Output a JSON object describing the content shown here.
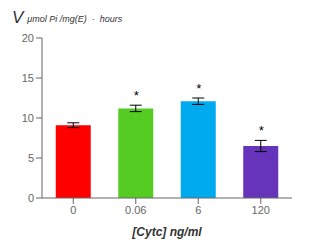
{
  "chart_data": {
    "type": "bar",
    "categories": [
      "0",
      "0.06",
      "6",
      "120"
    ],
    "values": [
      9.1,
      11.2,
      12.1,
      6.5
    ],
    "errors": [
      0.3,
      0.4,
      0.4,
      0.7
    ],
    "colors": [
      "#ff0000",
      "#55cc22",
      "#00aaee",
      "#6633bb"
    ],
    "xlabel": "[Cytc] ng/ml",
    "ylabel": "V",
    "ylabel_units": "μmol Pi /mg(E)  ·  hours",
    "annotations": [
      {
        "category": "0.06",
        "text": "*"
      },
      {
        "category": "6",
        "text": "*"
      },
      {
        "category": "120",
        "text": "*"
      }
    ],
    "ylim": [
      0,
      20
    ],
    "yticks": [
      0,
      5,
      10,
      15,
      20
    ],
    "grid": false
  }
}
